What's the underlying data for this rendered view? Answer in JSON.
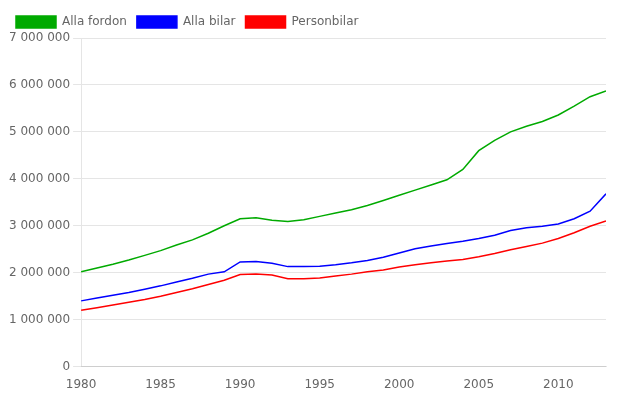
{
  "chart_data": {
    "type": "line",
    "x": [
      1980,
      1981,
      1982,
      1983,
      1984,
      1985,
      1986,
      1987,
      1988,
      1989,
      1990,
      1991,
      1992,
      1993,
      1994,
      1995,
      1996,
      1997,
      1998,
      1999,
      2000,
      2001,
      2002,
      2003,
      2004,
      2005,
      2006,
      2007,
      2008,
      2009,
      2010,
      2011,
      2012,
      2013
    ],
    "series": [
      {
        "name": "Alla fordon",
        "color": "#00aa00",
        "values": [
          2020000,
          2100000,
          2180000,
          2270000,
          2370000,
          2470000,
          2590000,
          2700000,
          2840000,
          3000000,
          3150000,
          3170000,
          3120000,
          3090000,
          3130000,
          3200000,
          3270000,
          3340000,
          3430000,
          3540000,
          3650000,
          3760000,
          3870000,
          3980000,
          4200000,
          4600000,
          4820000,
          5000000,
          5120000,
          5220000,
          5360000,
          5550000,
          5750000,
          5870000
        ]
      },
      {
        "name": "Alla bilar",
        "color": "#0000ff",
        "values": [
          1400000,
          1460000,
          1520000,
          1580000,
          1650000,
          1720000,
          1800000,
          1880000,
          1970000,
          2020000,
          2230000,
          2240000,
          2200000,
          2130000,
          2130000,
          2140000,
          2170000,
          2210000,
          2260000,
          2330000,
          2420000,
          2510000,
          2570000,
          2620000,
          2670000,
          2730000,
          2800000,
          2900000,
          2960000,
          2990000,
          3040000,
          3150000,
          3310000,
          3680000
        ]
      },
      {
        "name": "Personbilar",
        "color": "#ff0000",
        "values": [
          1200000,
          1255000,
          1310000,
          1370000,
          1430000,
          1500000,
          1580000,
          1660000,
          1750000,
          1840000,
          1960000,
          1970000,
          1950000,
          1870000,
          1870000,
          1890000,
          1930000,
          1970000,
          2020000,
          2060000,
          2120000,
          2170000,
          2210000,
          2250000,
          2280000,
          2340000,
          2410000,
          2490000,
          2560000,
          2630000,
          2730000,
          2850000,
          2990000,
          3100000
        ]
      }
    ],
    "xlim": [
      1980,
      2013
    ],
    "xticks": [
      1980,
      1985,
      1990,
      1995,
      2000,
      2005,
      2010
    ],
    "ylim": [
      0,
      7000000
    ],
    "yticks": [
      0,
      {
        "value": 1000000,
        "label": "1 000 000"
      },
      {
        "value": 2000000,
        "label": "2 000 000"
      },
      {
        "value": 3000000,
        "label": "3 000 000"
      },
      {
        "value": 4000000,
        "label": "4 000 000"
      },
      {
        "value": 5000000,
        "label": "5 000 000"
      },
      {
        "value": 6000000,
        "label": "6 000 000"
      },
      {
        "value": 7000000,
        "label": "7 000 000"
      }
    ],
    "grid": "y",
    "legend": "upper left"
  }
}
